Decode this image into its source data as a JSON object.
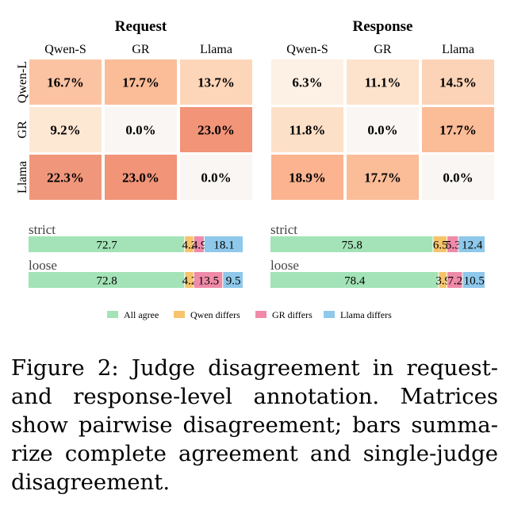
{
  "chart_data": [
    {
      "type": "heatmap",
      "title": "Request",
      "col_labels": [
        "Qwen-S",
        "GR",
        "Llama"
      ],
      "row_labels": [
        "Qwen-L",
        "GR",
        "Llama"
      ],
      "values": [
        [
          16.7,
          17.7,
          13.7
        ],
        [
          9.2,
          0.0,
          23.0
        ],
        [
          22.3,
          23.0,
          0.0
        ]
      ],
      "value_format": "%",
      "colors": [
        [
          "#fbc3a2",
          "#fbbc98",
          "#fdd6b9"
        ],
        [
          "#fde8d4",
          "#f9f6f3",
          "#f19478"
        ],
        [
          "#f0977b",
          "#f19478",
          "#f9f6f3"
        ]
      ]
    },
    {
      "type": "heatmap",
      "title": "Response",
      "col_labels": [
        "Qwen-S",
        "GR",
        "Llama"
      ],
      "row_labels": [
        "Qwen-L",
        "GR",
        "Llama"
      ],
      "values": [
        [
          6.3,
          11.1,
          14.5
        ],
        [
          11.8,
          0.0,
          17.7
        ],
        [
          18.9,
          17.7,
          0.0
        ]
      ],
      "value_format": "%",
      "colors": [
        [
          "#fdf0e4",
          "#fde2cc",
          "#fcd3b6"
        ],
        [
          "#fde0c8",
          "#f9f6f3",
          "#fbbc98"
        ],
        [
          "#fbb390",
          "#fbbc98",
          "#f9f6f3"
        ]
      ]
    },
    {
      "type": "bar",
      "orientation": "horizontal-stacked",
      "panel": "Request",
      "categories": [
        "strict",
        "loose"
      ],
      "series": [
        {
          "name": "All agree",
          "values": [
            72.7,
            72.8
          ]
        },
        {
          "name": "Qwen differs",
          "values": [
            4.2,
            4.2
          ]
        },
        {
          "name": "GR differs",
          "values": [
            4.9,
            13.5
          ]
        },
        {
          "name": "Llama differs",
          "values": [
            18.1,
            9.5
          ]
        }
      ]
    },
    {
      "type": "bar",
      "orientation": "horizontal-stacked",
      "panel": "Response",
      "categories": [
        "strict",
        "loose"
      ],
      "series": [
        {
          "name": "All agree",
          "values": [
            75.8,
            78.4
          ]
        },
        {
          "name": "Qwen differs",
          "values": [
            6.5,
            3.9
          ]
        },
        {
          "name": "GR differs",
          "values": [
            5.3,
            7.2
          ]
        },
        {
          "name": "Llama differs",
          "values": [
            12.4,
            10.5
          ]
        }
      ]
    }
  ],
  "legend": {
    "placement": "bottom-center",
    "items": [
      {
        "name": "All agree",
        "color": "#a3e3b7"
      },
      {
        "name": "Qwen differs",
        "color": "#f7c46c"
      },
      {
        "name": "GR differs",
        "color": "#ef8aa8"
      },
      {
        "name": "Llama differs",
        "color": "#8ec8ea"
      }
    ]
  },
  "caption": {
    "lines": [
      "Figure 2: Judge disagreement in request-",
      "and response-level annotation. Matrices",
      "show pairwise disagreement; bars summa-",
      "rize complete agreement and single-judge",
      "disagreement."
    ]
  }
}
